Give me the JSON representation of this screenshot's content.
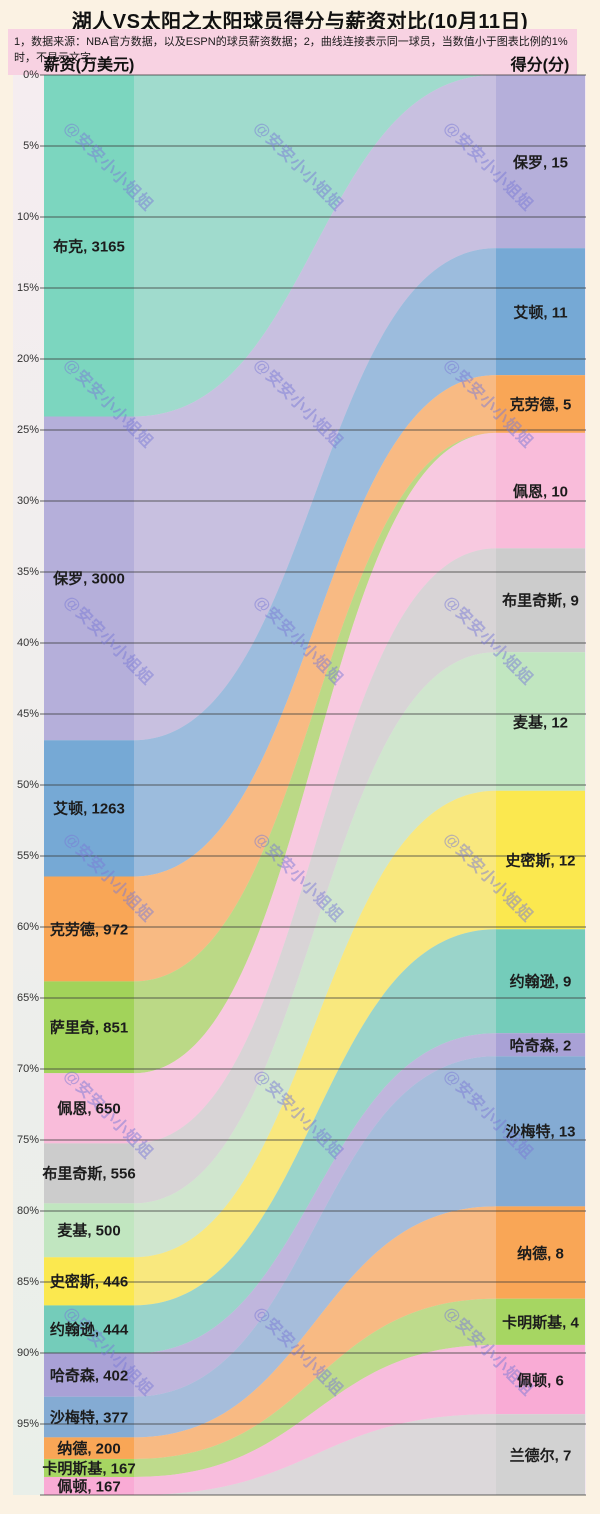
{
  "title": "湖人VS太阳之太阳球员得分与薪资对比(10月11日)",
  "notes": "1，数据来源：NBA官方数据，以及ESPN的球员薪资数据；2，曲线连接表示同一球员，当数值小于图表比例的1%时，不显示文字。",
  "watermark_text": "@安安小小姐姐",
  "colors": {
    "page_background": "#fbf2e3",
    "notes_background": "#f8d2e2",
    "plot_background": "#f4e8ee",
    "axis_strip": "#edefe9",
    "gridline": "rgba(60,60,60,0.8)"
  },
  "chart_data": {
    "type": "area",
    "subtype": "alluvial-slope-sankey",
    "left_header": "薪资(万美元)",
    "right_header": "得分(分)",
    "axis_tick_labels": [
      "0%",
      "5%",
      "10%",
      "15%",
      "20%",
      "25%",
      "30%",
      "35%",
      "40%",
      "45%",
      "50%",
      "55%",
      "60%",
      "65%",
      "70%",
      "75%",
      "80%",
      "85%",
      "90%",
      "95%"
    ],
    "axis_range_percent": [
      0,
      100
    ],
    "label_separator": ", ",
    "hide_label_below_percent": 1,
    "players": [
      {
        "name": "布克",
        "salary": 3165,
        "points": null,
        "color": "#7cd6bf"
      },
      {
        "name": "保罗",
        "salary": 3000,
        "points": 15,
        "color": "#b5afda"
      },
      {
        "name": "艾顿",
        "salary": 1263,
        "points": 11,
        "color": "#76a9d5"
      },
      {
        "name": "克劳德",
        "salary": 972,
        "points": 5,
        "color": "#f9a656"
      },
      {
        "name": "萨里奇",
        "salary": 851,
        "points": null,
        "color": "#a2d35a"
      },
      {
        "name": "佩恩",
        "salary": 650,
        "points": 10,
        "color": "#f9bcda"
      },
      {
        "name": "布里奇斯",
        "salary": 556,
        "points": 9,
        "color": "#cccccc"
      },
      {
        "name": "麦基",
        "salary": 500,
        "points": 12,
        "color": "#c1e6c0"
      },
      {
        "name": "史密斯",
        "salary": 446,
        "points": 12,
        "color": "#fbe84f"
      },
      {
        "name": "约翰逊",
        "salary": 444,
        "points": 9,
        "color": "#74ccba"
      },
      {
        "name": "哈奇森",
        "salary": 402,
        "points": 2,
        "color": "#a9a1d6"
      },
      {
        "name": "沙梅特",
        "salary": 377,
        "points": 13,
        "color": "#84abd3"
      },
      {
        "name": "纳德",
        "salary": 200,
        "points": 8,
        "color": "#f9a656"
      },
      {
        "name": "卡明斯基",
        "salary": 167,
        "points": 4,
        "color": "#a6d662"
      },
      {
        "name": "佩顿",
        "salary": 167,
        "points": 6,
        "color": "#f9abd5"
      },
      {
        "name": "兰德尔",
        "salary": null,
        "points": 7,
        "color": "#d2d2d2"
      }
    ]
  }
}
